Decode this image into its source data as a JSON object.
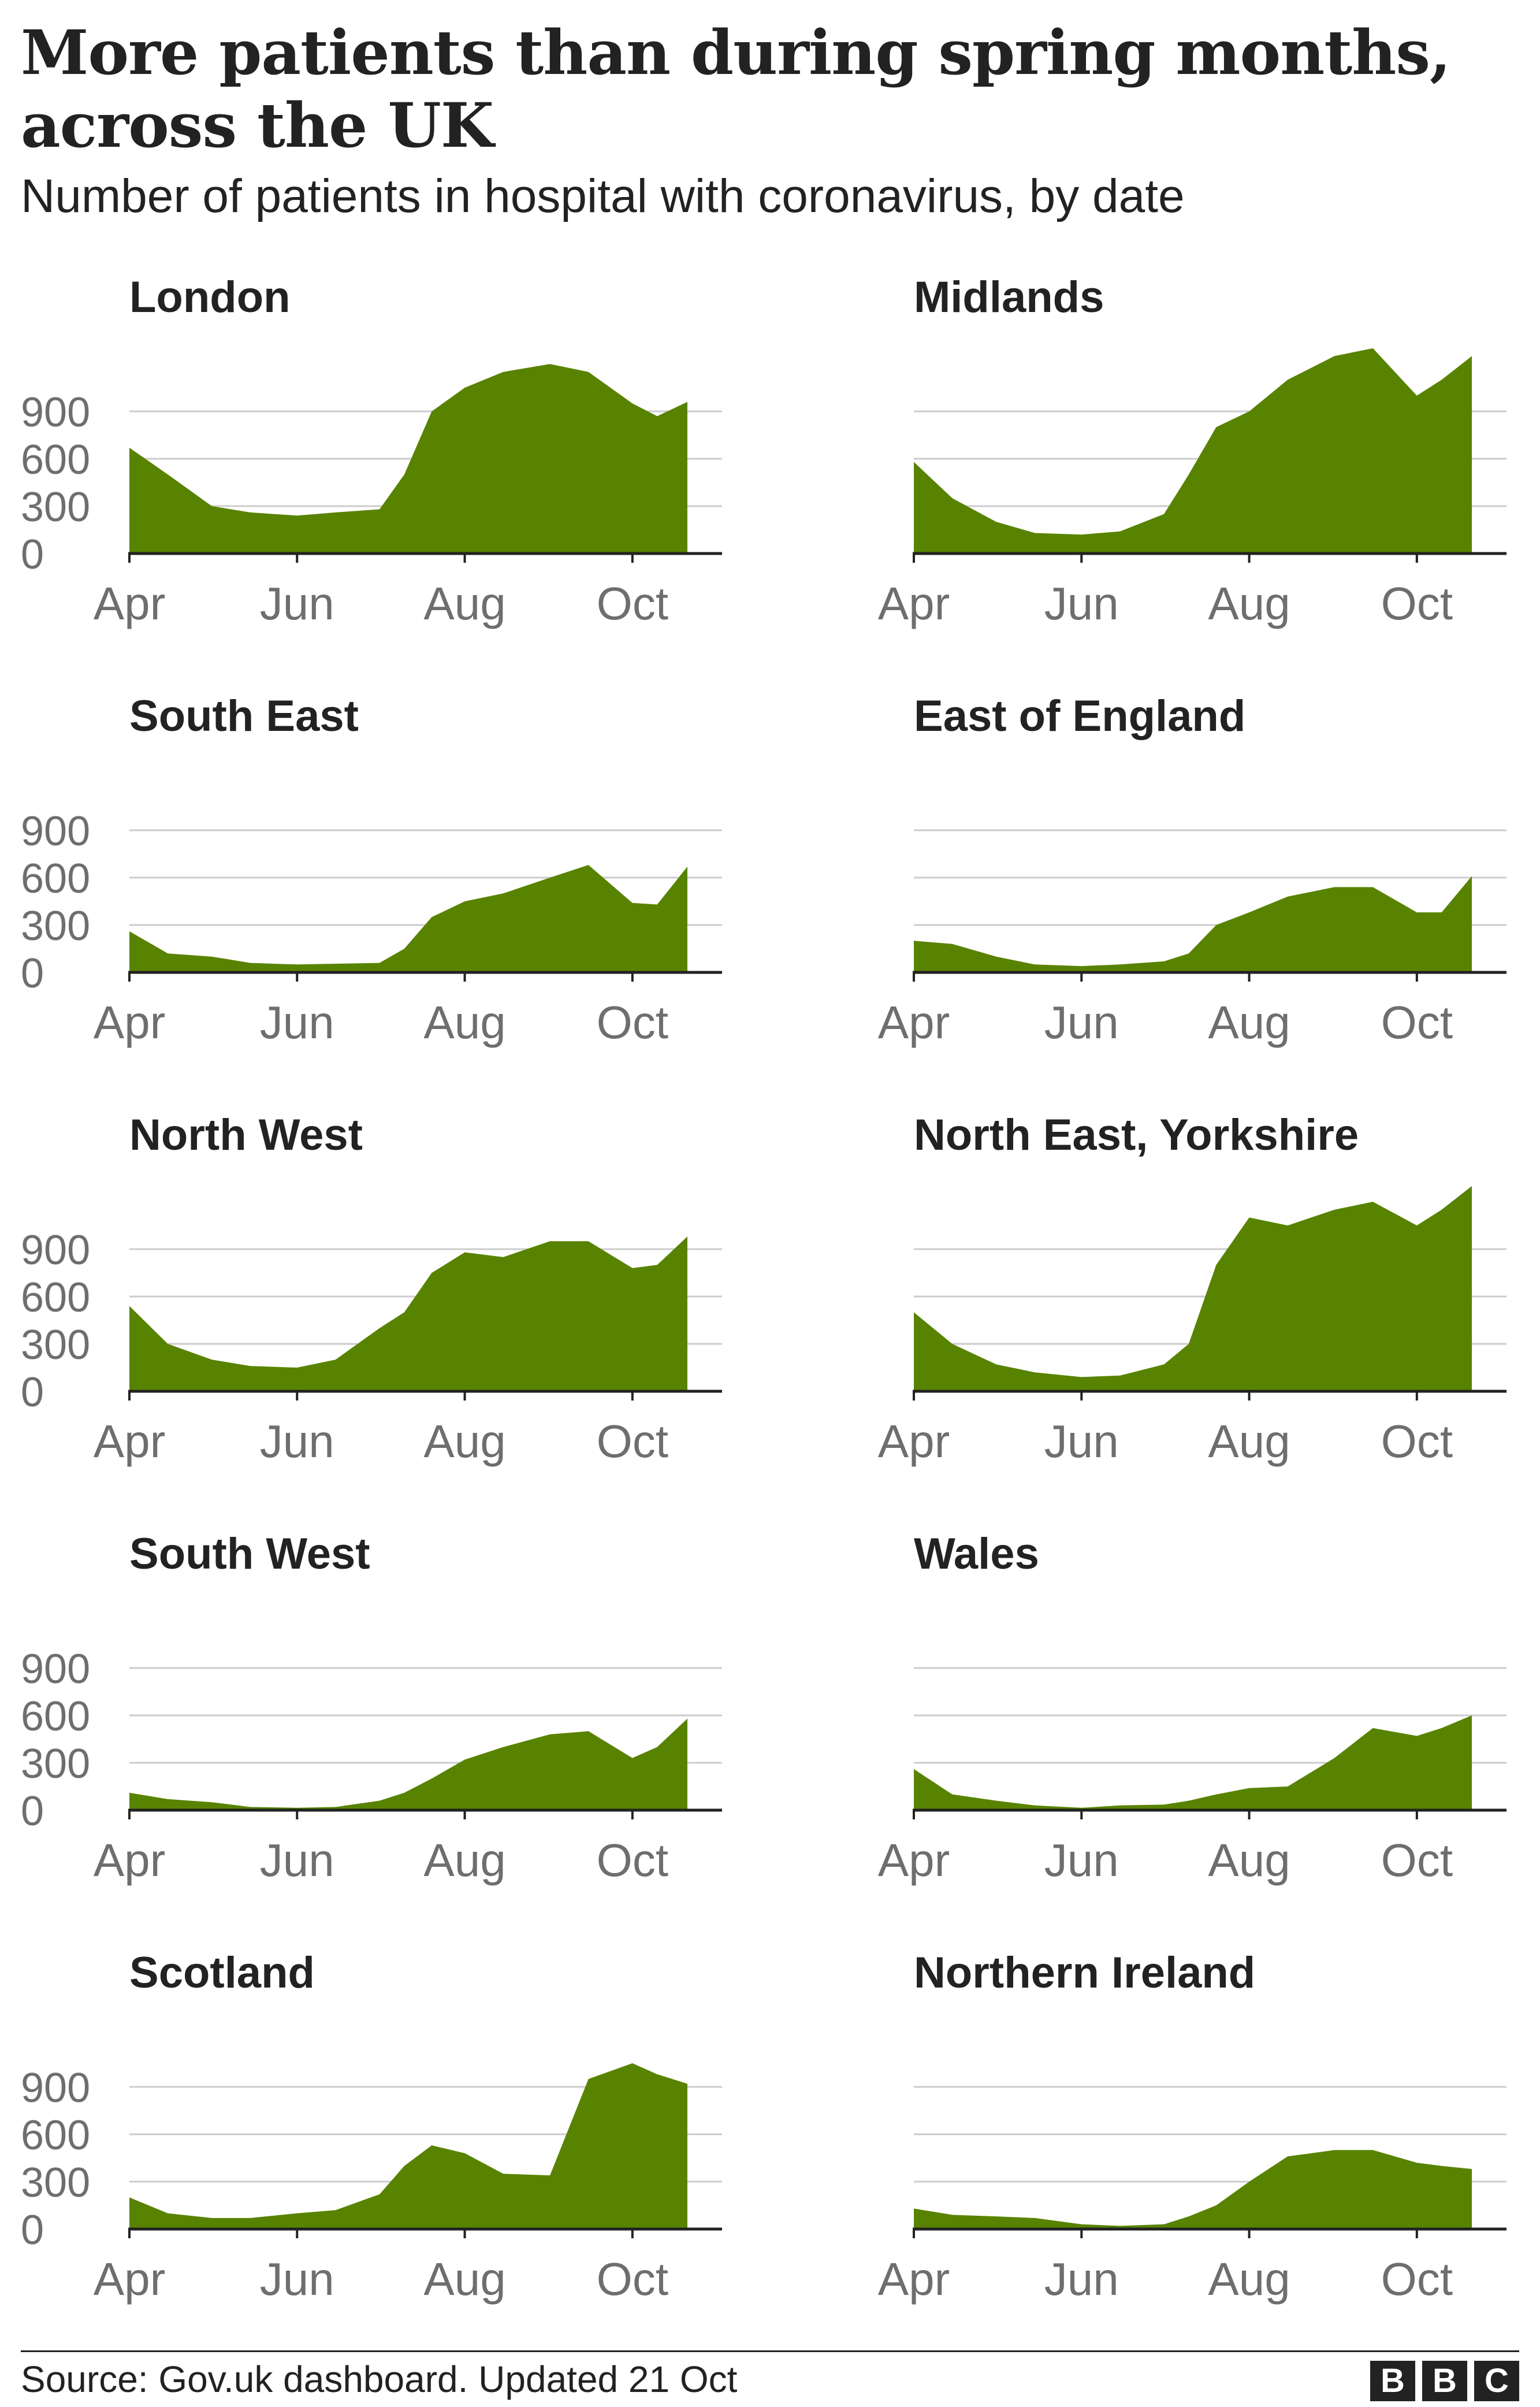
{
  "title": "More patients than during spring months, across the UK",
  "subtitle": "Number of patients in hospital with coronavirus, by date",
  "source": "Source: Gov.uk dashboard. Updated 21 Oct",
  "logo_letters": [
    "B",
    "B",
    "C"
  ],
  "colors": {
    "area": "#588300",
    "axis": "#222222",
    "grid": "#cccccc",
    "tick_label": "#6e6e6e",
    "text": "#222222"
  },
  "chart_data": [
    {
      "type": "area",
      "title": "London",
      "x": [
        "2020-04-01",
        "2020-04-15",
        "2020-05-01",
        "2020-05-15",
        "2020-06-01",
        "2020-06-15",
        "2020-07-01",
        "2020-07-10",
        "2020-07-20",
        "2020-08-01",
        "2020-08-15",
        "2020-09-01",
        "2020-09-15",
        "2020-10-01",
        "2020-10-10",
        "2020-10-21"
      ],
      "values": [
        670,
        500,
        300,
        260,
        240,
        260,
        280,
        500,
        900,
        1050,
        1150,
        1200,
        1150,
        950,
        870,
        960
      ],
      "xticks": [
        "Apr",
        "Jun",
        "Aug",
        "Oct"
      ],
      "yticks": [
        0,
        300,
        600,
        900
      ],
      "ylim": [
        0,
        1300
      ]
    },
    {
      "type": "area",
      "title": "Midlands",
      "x": [
        "2020-04-01",
        "2020-04-15",
        "2020-05-01",
        "2020-05-15",
        "2020-06-01",
        "2020-06-15",
        "2020-07-01",
        "2020-07-10",
        "2020-07-20",
        "2020-08-01",
        "2020-08-15",
        "2020-09-01",
        "2020-09-15",
        "2020-10-01",
        "2020-10-10",
        "2020-10-21"
      ],
      "values": [
        580,
        350,
        200,
        130,
        120,
        140,
        250,
        500,
        800,
        900,
        1100,
        1250,
        1300,
        1000,
        1100,
        1250
      ],
      "xticks": [
        "Apr",
        "Jun",
        "Aug",
        "Oct"
      ],
      "yticks": [
        0,
        300,
        600,
        900
      ],
      "ylim": [
        0,
        1300
      ]
    },
    {
      "type": "area",
      "title": "South East",
      "x": [
        "2020-04-01",
        "2020-04-15",
        "2020-05-01",
        "2020-05-15",
        "2020-06-01",
        "2020-06-15",
        "2020-07-01",
        "2020-07-10",
        "2020-07-20",
        "2020-08-01",
        "2020-08-15",
        "2020-09-01",
        "2020-09-15",
        "2020-10-01",
        "2020-10-10",
        "2020-10-21"
      ],
      "values": [
        260,
        120,
        100,
        60,
        50,
        55,
        60,
        150,
        350,
        450,
        500,
        600,
        680,
        440,
        430,
        670
      ],
      "xticks": [
        "Apr",
        "Jun",
        "Aug",
        "Oct"
      ],
      "yticks": [
        0,
        300,
        600,
        900
      ],
      "ylim": [
        0,
        1300
      ]
    },
    {
      "type": "area",
      "title": "East of England",
      "x": [
        "2020-04-01",
        "2020-04-15",
        "2020-05-01",
        "2020-05-15",
        "2020-06-01",
        "2020-06-15",
        "2020-07-01",
        "2020-07-10",
        "2020-07-20",
        "2020-08-01",
        "2020-08-15",
        "2020-09-01",
        "2020-09-15",
        "2020-10-01",
        "2020-10-10",
        "2020-10-21"
      ],
      "values": [
        200,
        180,
        100,
        50,
        40,
        50,
        70,
        120,
        300,
        380,
        480,
        540,
        540,
        380,
        380,
        610
      ],
      "xticks": [
        "Apr",
        "Jun",
        "Aug",
        "Oct"
      ],
      "yticks": [
        0,
        300,
        600,
        900
      ],
      "ylim": [
        0,
        1300
      ]
    },
    {
      "type": "area",
      "title": "North West",
      "x": [
        "2020-04-01",
        "2020-04-15",
        "2020-05-01",
        "2020-05-15",
        "2020-06-01",
        "2020-06-15",
        "2020-07-01",
        "2020-07-10",
        "2020-07-20",
        "2020-08-01",
        "2020-08-15",
        "2020-09-01",
        "2020-09-15",
        "2020-10-01",
        "2020-10-10",
        "2020-10-21"
      ],
      "values": [
        540,
        300,
        200,
        160,
        150,
        200,
        400,
        500,
        750,
        880,
        850,
        950,
        950,
        780,
        800,
        980
      ],
      "xticks": [
        "Apr",
        "Jun",
        "Aug",
        "Oct"
      ],
      "yticks": [
        0,
        300,
        600,
        900
      ],
      "ylim": [
        0,
        1300
      ]
    },
    {
      "type": "area",
      "title": "North East, Yorkshire",
      "x": [
        "2020-04-01",
        "2020-04-15",
        "2020-05-01",
        "2020-05-15",
        "2020-06-01",
        "2020-06-15",
        "2020-07-01",
        "2020-07-10",
        "2020-07-20",
        "2020-08-01",
        "2020-08-15",
        "2020-09-01",
        "2020-09-15",
        "2020-10-01",
        "2020-10-10",
        "2020-10-21"
      ],
      "values": [
        500,
        300,
        170,
        120,
        90,
        100,
        170,
        300,
        800,
        1100,
        1050,
        1150,
        1200,
        1050,
        1150,
        1300
      ],
      "xticks": [
        "Apr",
        "Jun",
        "Aug",
        "Oct"
      ],
      "yticks": [
        0,
        300,
        600,
        900
      ],
      "ylim": [
        0,
        1300
      ]
    },
    {
      "type": "area",
      "title": "South West",
      "x": [
        "2020-04-01",
        "2020-04-15",
        "2020-05-01",
        "2020-05-15",
        "2020-06-01",
        "2020-06-15",
        "2020-07-01",
        "2020-07-10",
        "2020-07-20",
        "2020-08-01",
        "2020-08-15",
        "2020-09-01",
        "2020-09-15",
        "2020-10-01",
        "2020-10-10",
        "2020-10-21"
      ],
      "values": [
        110,
        70,
        50,
        20,
        15,
        20,
        60,
        110,
        200,
        320,
        400,
        480,
        500,
        330,
        400,
        580
      ],
      "xticks": [
        "Apr",
        "Jun",
        "Aug",
        "Oct"
      ],
      "yticks": [
        0,
        300,
        600,
        900
      ],
      "ylim": [
        0,
        1300
      ]
    },
    {
      "type": "area",
      "title": "Wales",
      "x": [
        "2020-04-01",
        "2020-04-15",
        "2020-05-01",
        "2020-05-15",
        "2020-06-01",
        "2020-06-15",
        "2020-07-01",
        "2020-07-10",
        "2020-07-20",
        "2020-08-01",
        "2020-08-15",
        "2020-09-01",
        "2020-09-15",
        "2020-10-01",
        "2020-10-10",
        "2020-10-21"
      ],
      "values": [
        260,
        100,
        60,
        30,
        15,
        30,
        35,
        60,
        100,
        140,
        150,
        330,
        520,
        470,
        520,
        600
      ],
      "xticks": [
        "Apr",
        "Jun",
        "Aug",
        "Oct"
      ],
      "yticks": [
        0,
        300,
        600,
        900
      ],
      "ylim": [
        0,
        1300
      ]
    },
    {
      "type": "area",
      "title": "Scotland",
      "x": [
        "2020-04-01",
        "2020-04-15",
        "2020-05-01",
        "2020-05-15",
        "2020-06-01",
        "2020-06-15",
        "2020-07-01",
        "2020-07-10",
        "2020-07-20",
        "2020-08-01",
        "2020-08-15",
        "2020-09-01",
        "2020-09-15",
        "2020-10-01",
        "2020-10-10",
        "2020-10-21"
      ],
      "values": [
        200,
        100,
        70,
        70,
        100,
        120,
        220,
        400,
        530,
        480,
        350,
        340,
        950,
        1050,
        980,
        920
      ],
      "xticks": [
        "Apr",
        "Jun",
        "Aug",
        "Oct"
      ],
      "yticks": [
        0,
        300,
        600,
        900
      ],
      "ylim": [
        0,
        1300
      ]
    },
    {
      "type": "area",
      "title": "Northern Ireland",
      "x": [
        "2020-04-01",
        "2020-04-15",
        "2020-05-01",
        "2020-05-15",
        "2020-06-01",
        "2020-06-15",
        "2020-07-01",
        "2020-07-10",
        "2020-07-20",
        "2020-08-01",
        "2020-08-15",
        "2020-09-01",
        "2020-09-15",
        "2020-10-01",
        "2020-10-10",
        "2020-10-21"
      ],
      "values": [
        130,
        90,
        80,
        70,
        30,
        20,
        30,
        80,
        150,
        300,
        460,
        500,
        500,
        420,
        400,
        380
      ],
      "xticks": [
        "Apr",
        "Jun",
        "Aug",
        "Oct"
      ],
      "yticks": [
        0,
        300,
        600,
        900
      ],
      "ylim": [
        0,
        1300
      ]
    }
  ]
}
